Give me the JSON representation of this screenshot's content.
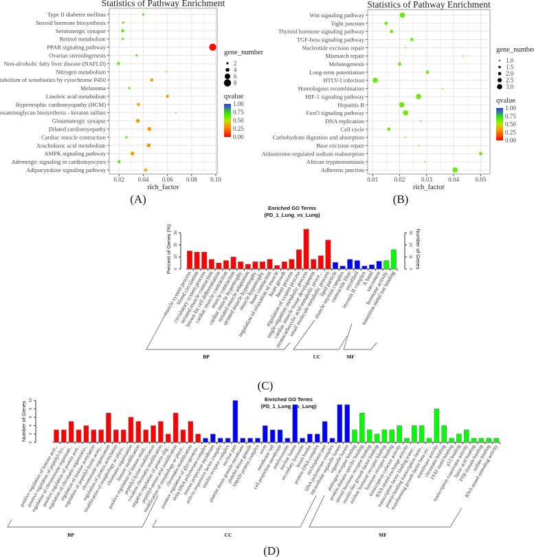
{
  "panel_labels": [
    "(A)",
    "(B)",
    "(C)",
    "(D)"
  ],
  "colors": {
    "bp": "#ff0000",
    "cc": "#0000ff",
    "mf": "#00ff00",
    "q_low": "#ff0000",
    "q_mid": "#ff9000",
    "q_green": "#33ee00",
    "q_high": "#3333ff"
  },
  "chart_data": [
    {
      "panel": "(A)",
      "type": "scatter",
      "title": "Statistics of Pathway Enrichment",
      "xlabel": "rich_factor",
      "ylabel": "",
      "xlim": [
        0.017,
        0.1
      ],
      "xticks": [
        "0.02",
        "0.04",
        "0.06",
        "0.08",
        "0.10"
      ],
      "xtick_values": [
        0.02,
        0.04,
        0.06,
        0.08,
        0.1
      ],
      "grid": true,
      "size_legend": {
        "title": "gene_number",
        "values": [
          "2",
          "4",
          "6",
          "8"
        ]
      },
      "color_legend": {
        "title": "qvalue",
        "values": [
          "1.00",
          "0.75",
          "0.50",
          "0.25",
          "0.00"
        ]
      },
      "points": [
        {
          "pathway": "Type II diabetes mellitus",
          "rich_factor": 0.04,
          "gene_number": 2,
          "qvalue": 0.65
        },
        {
          "pathway": "Steroid hormone biosynthesis",
          "rich_factor": 0.0235,
          "gene_number": 2,
          "qvalue": 0.65
        },
        {
          "pathway": "Serotonergic synapse",
          "rich_factor": 0.023,
          "gene_number": 3,
          "qvalue": 0.65
        },
        {
          "pathway": "Retinol metabolism",
          "rich_factor": 0.023,
          "gene_number": 2,
          "qvalue": 0.65
        },
        {
          "pathway": "PPAR signaling pathway",
          "rich_factor": 0.0975,
          "gene_number": 8,
          "qvalue": 0.02
        },
        {
          "pathway": "Ovarian steroidogenesis",
          "rich_factor": 0.0345,
          "gene_number": 2,
          "qvalue": 0.65
        },
        {
          "pathway": "Non-alcoholic fatty liver disease (NAFLD)",
          "rich_factor": 0.0195,
          "gene_number": 3,
          "qvalue": 0.65
        },
        {
          "pathway": "Nitrogen metabolism",
          "rich_factor": 0.059,
          "gene_number": 1,
          "qvalue": 0.65
        },
        {
          "pathway": "Metabolism of xenobiotics by cytochrome P450",
          "rich_factor": 0.047,
          "gene_number": 3,
          "qvalue": 0.3
        },
        {
          "pathway": "Melanoma",
          "rich_factor": 0.0285,
          "gene_number": 2,
          "qvalue": 0.65
        },
        {
          "pathway": "Linoleic acid metabolism",
          "rich_factor": 0.06,
          "gene_number": 3,
          "qvalue": 0.3
        },
        {
          "pathway": "Hypertrophic cardiomyopathy (HCM)",
          "rich_factor": 0.036,
          "gene_number": 3,
          "qvalue": 0.33
        },
        {
          "pathway": "Glycosaminoglycan biosynthesis - keratan sulfate",
          "rich_factor": 0.067,
          "gene_number": 1,
          "qvalue": 0.65
        },
        {
          "pathway": "Glutamatergic synapse",
          "rich_factor": 0.0355,
          "gene_number": 4,
          "qvalue": 0.33
        },
        {
          "pathway": "Dilated cardiomyopathy",
          "rich_factor": 0.045,
          "gene_number": 4,
          "qvalue": 0.3
        },
        {
          "pathway": "Cardiac muscle contraction",
          "rich_factor": 0.026,
          "gene_number": 2,
          "qvalue": 0.65
        },
        {
          "pathway": "Arachidonic acid metabolism",
          "rich_factor": 0.0445,
          "gene_number": 4,
          "qvalue": 0.3
        },
        {
          "pathway": "AMPK signaling pathway",
          "rich_factor": 0.031,
          "gene_number": 4,
          "qvalue": 0.33
        },
        {
          "pathway": "Adrenergic signaling in cardiomyocytes",
          "rich_factor": 0.02,
          "gene_number": 3,
          "qvalue": 0.65
        },
        {
          "pathway": "Adipocytokine signaling pathway",
          "rich_factor": 0.042,
          "gene_number": 3,
          "qvalue": 0.33
        }
      ]
    },
    {
      "panel": "(B)",
      "type": "scatter",
      "title": "Statistics of Pathway Enrichment",
      "xlabel": "rich_factor",
      "ylabel": "",
      "xlim": [
        0.0092,
        0.0514
      ],
      "xticks": [
        "0.01",
        "0.02",
        "0.03",
        "0.04",
        "0.05"
      ],
      "xtick_values": [
        0.01,
        0.02,
        0.03,
        0.04,
        0.05
      ],
      "grid": true,
      "size_legend": {
        "title": "gene_number",
        "values": [
          "1.0",
          "1.5",
          "2.0",
          "2.5",
          "3.0"
        ]
      },
      "color_legend": {
        "title": "qvalue",
        "values": [
          "1.00",
          "0.75",
          "0.50",
          "0.25",
          "0.00"
        ]
      },
      "points": [
        {
          "pathway": "Wnt signaling pathway",
          "rich_factor": 0.021,
          "gene_number": 3,
          "qvalue": 0.62
        },
        {
          "pathway": "Tight junction",
          "rich_factor": 0.015,
          "gene_number": 2,
          "qvalue": 0.62
        },
        {
          "pathway": "Thyroid hormone signaling pathway",
          "rich_factor": 0.017,
          "gene_number": 2,
          "qvalue": 0.62
        },
        {
          "pathway": "TGF-beta signaling pathway",
          "rich_factor": 0.0245,
          "gene_number": 2,
          "qvalue": 0.62
        },
        {
          "pathway": "Nucleotide excision repair",
          "rich_factor": 0.0222,
          "gene_number": 1,
          "qvalue": 0.62
        },
        {
          "pathway": "Mismatch repair",
          "rich_factor": 0.0437,
          "gene_number": 1,
          "qvalue": 0.62
        },
        {
          "pathway": "Melanogenesis",
          "rich_factor": 0.02,
          "gene_number": 2,
          "qvalue": 0.62
        },
        {
          "pathway": "Long-term potentiation",
          "rich_factor": 0.0303,
          "gene_number": 2,
          "qvalue": 0.62
        },
        {
          "pathway": "HTLV-I infection",
          "rich_factor": 0.011,
          "gene_number": 3,
          "qvalue": 0.62
        },
        {
          "pathway": "Homologous recombination",
          "rich_factor": 0.0359,
          "gene_number": 1,
          "qvalue": 0.62
        },
        {
          "pathway": "HIF-1 signaling pathway",
          "rich_factor": 0.027,
          "gene_number": 3,
          "qvalue": 0.62
        },
        {
          "pathway": "Hepatitis B",
          "rich_factor": 0.0208,
          "gene_number": 3,
          "qvalue": 0.62
        },
        {
          "pathway": "FoxO signaling pathway",
          "rich_factor": 0.0222,
          "gene_number": 3,
          "qvalue": 0.62
        },
        {
          "pathway": "DNA replication",
          "rich_factor": 0.0278,
          "gene_number": 1,
          "qvalue": 0.62
        },
        {
          "pathway": "Cell cycle",
          "rich_factor": 0.016,
          "gene_number": 2,
          "qvalue": 0.62
        },
        {
          "pathway": "Carbohydrate digestion and absorption",
          "rich_factor": 0.0222,
          "gene_number": 1,
          "qvalue": 0.62
        },
        {
          "pathway": "Base excision repair",
          "rich_factor": 0.027,
          "gene_number": 1,
          "qvalue": 0.62
        },
        {
          "pathway": "Aldosterone-regulated sodium reabsorption",
          "rich_factor": 0.05,
          "gene_number": 2,
          "qvalue": 0.62
        },
        {
          "pathway": "African trypanosomiasis",
          "rich_factor": 0.0294,
          "gene_number": 1,
          "qvalue": 0.62
        },
        {
          "pathway": "Adherens junction",
          "rich_factor": 0.0405,
          "gene_number": 3,
          "qvalue": 0.62
        }
      ]
    },
    {
      "panel": "(C)",
      "type": "bar",
      "title": "Enriched GO Terms",
      "subtitle": "(PD_1_Lung_vs_Lung)",
      "ylabel": "Percent of Genes (%)",
      "ylabel_right": "Number of Genes",
      "ylim": [
        0,
        33
      ],
      "yticks": [
        "0",
        "10",
        "20",
        "30"
      ],
      "ytick_values": [
        0,
        10,
        20,
        30
      ],
      "yticks_right": [
        "0",
        "11",
        "22",
        "32"
      ],
      "groups": [
        {
          "name": "BP",
          "categories": [
            "muscle system process",
            "blood circulation",
            "circulatory system process",
            "striated muscle contraction",
            "brown fat cell differentiation",
            "cardiac muscle contraction",
            "muscle contraction",
            "cardiac muscle hypertrophy",
            "striated muscle adaptation",
            "striated muscle hypertrophy",
            "muscle hypertrophy",
            "heart contraction",
            "regulation of relaxation of muscle",
            "heart growth",
            "heart process",
            "regulation of system process",
            "single-organism metabolic process",
            "cardiac muscle tissue development",
            "monocarboxylic acid metabolic proce...",
            "small molecule metabolic process"
          ],
          "values": [
            15,
            14,
            14,
            8,
            5,
            7,
            10,
            6,
            4,
            6,
            6,
            8,
            3,
            6,
            8,
            16,
            33,
            8,
            11,
            24
          ]
        },
        {
          "name": "CC",
          "categories": [
            "lipid particle",
            "muscle myosin complex",
            "contractile fiber",
            "myofibril",
            "myosin II complex",
            "A band",
            "sarcomere"
          ],
          "values": [
            5.5,
            2.5,
            8,
            7,
            2.5,
            3.5,
            6.5
          ]
        },
        {
          "name": "MF",
          "categories": [
            "hormone activity",
            "transition metal ion binding"
          ],
          "values": [
            7,
            16
          ]
        }
      ]
    },
    {
      "panel": "(D)",
      "type": "bar",
      "title": "Enriched GO Terms",
      "subtitle": "(PD_1_Lung_vs_Lung)",
      "ylabel": "Number of Genes",
      "ylim": [
        0,
        10
      ],
      "yticks": [
        "0",
        "2",
        "4",
        "6",
        "8",
        "10"
      ],
      "ytick_values": [
        0,
        2,
        4,
        6,
        8,
        10
      ],
      "groups": [
        {
          "name": "BP",
          "categories": [
            "positive regulation of histone acet...",
            "positive regulation of peptidyl-lys...",
            "regulation of chromosome organizati...",
            "positive regulation of protein acet...",
            "regulation of chromatin organizatio...",
            "regulation of histone acetylation",
            "regulation of peptidyl-lysine acety...",
            "chromosome organization",
            "regulation of protein acetylation",
            "modification of morphology or physi...",
            "chromatin organization",
            "histone modification",
            "positive regulation of histone modi...",
            "peptidyl-lysine modification",
            "covalent chromatin modification",
            "negative regulation of protein olig...",
            "peptidyl-amino acid modification",
            "modification of morphology or physi...",
            "chromatin modification",
            "positive regulation of glycoprotein..."
          ],
          "values": [
            3,
            3,
            5,
            3,
            4,
            3,
            3,
            7,
            3,
            3,
            6,
            5,
            3,
            4,
            5,
            2,
            7,
            3,
            5,
            2
          ]
        },
        {
          "name": "CC",
          "categories": [
            "delta DNA polymerase complex",
            "neuron projection membrane",
            "activin responsive factor complex",
            "insulin receptor complex",
            "nuclear part",
            "platelet dense granule membrane",
            "platelet dense granule",
            "SMAD protein complex",
            "axon",
            "membrane raft",
            "cell projection membrane",
            "autolysosome",
            "nuclear lumen",
            "secondary lysosome",
            "brush border",
            "protein-DNA complex",
            "nucleoplasm part",
            "DNA polymerase complex",
            "intracellular organelle lumen",
            "organelle lumen"
          ],
          "values": [
            1,
            2,
            1,
            1,
            10,
            1,
            1,
            1,
            4,
            3,
            3,
            1,
            9,
            1,
            2,
            2,
            5,
            1,
            9,
            9
          ]
        },
        {
          "name": "MF",
          "categories": [
            "androgen receptor binding",
            "protein domain specific binding",
            "steroid hormone receptor binding",
            "insulin-like growth factor binding",
            "nuclear hormone receptor binding",
            "hormone receptor binding",
            "transcription cofactor activity",
            "RNA strand-exchange activity",
            "transcription factor binding transc...",
            "protein binding transcription facto...",
            "transforming growth factor beta rec...",
            "transferase activity",
            "chromatin binding",
            "FFAT motif binding",
            "p53 binding",
            "transcription coactivator activity",
            "lipoic acid binding",
            "PTB domain binding",
            "sulfate binding",
            "RNA strand annealing activity"
          ],
          "values": [
            3,
            7,
            3,
            2,
            3,
            3,
            4,
            1,
            4,
            4,
            1,
            8,
            4,
            1,
            2,
            3,
            1,
            1,
            1,
            1
          ]
        }
      ]
    }
  ]
}
